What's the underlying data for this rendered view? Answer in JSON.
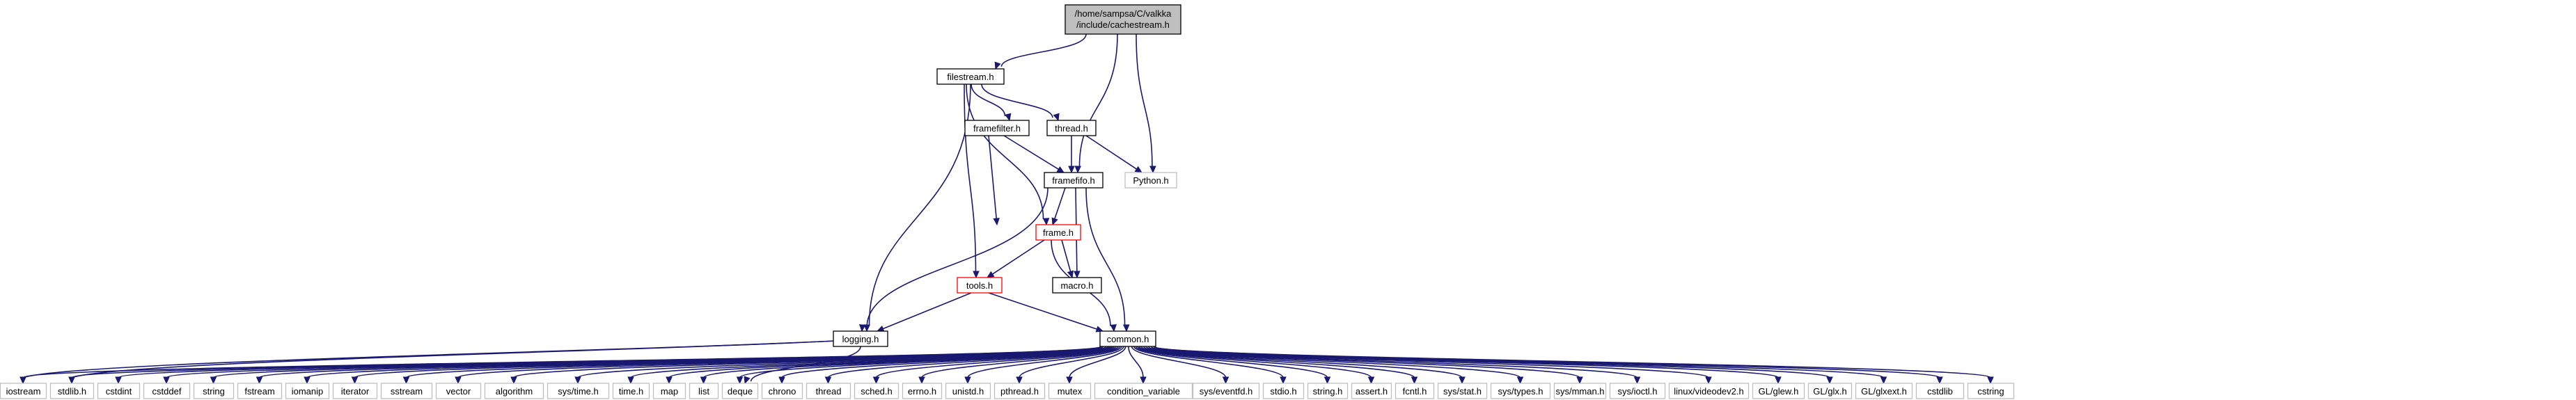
{
  "graph": {
    "root": {
      "line1": "/home/sampsa/C/valkka",
      "line2": "/include/cachestream.h"
    },
    "headers": {
      "filestream": "filestream.h",
      "framefilter": "framefilter.h",
      "thread": "thread.h",
      "python": "Python.h",
      "framefifo": "framefifo.h",
      "frame": "frame.h",
      "tools": "tools.h",
      "macro": "macro.h",
      "logging": "logging.h",
      "common": "common.h"
    },
    "system_headers": [
      "iostream",
      "stdlib.h",
      "cstdint",
      "cstddef",
      "string",
      "fstream",
      "iomanip",
      "iterator",
      "sstream",
      "vector",
      "algorithm",
      "sys/time.h",
      "time.h",
      "map",
      "list",
      "deque",
      "chrono",
      "thread",
      "sched.h",
      "errno.h",
      "unistd.h",
      "pthread.h",
      "mutex",
      "condition_variable",
      "sys/eventfd.h",
      "stdio.h",
      "string.h",
      "assert.h",
      "fcntl.h",
      "sys/stat.h",
      "sys/types.h",
      "sys/mman.h",
      "sys/ioctl.h",
      "linux/videodev2.h",
      "GL/glew.h",
      "GL/glx.h",
      "GL/glxext.h",
      "cstdlib",
      "cstring"
    ],
    "colors": {
      "edge": "#191970",
      "root_fill": "#bfbfbf",
      "node_border": "#000000",
      "truncated_border": "#ff0000",
      "leaf_border": "#bfbfbf"
    }
  }
}
